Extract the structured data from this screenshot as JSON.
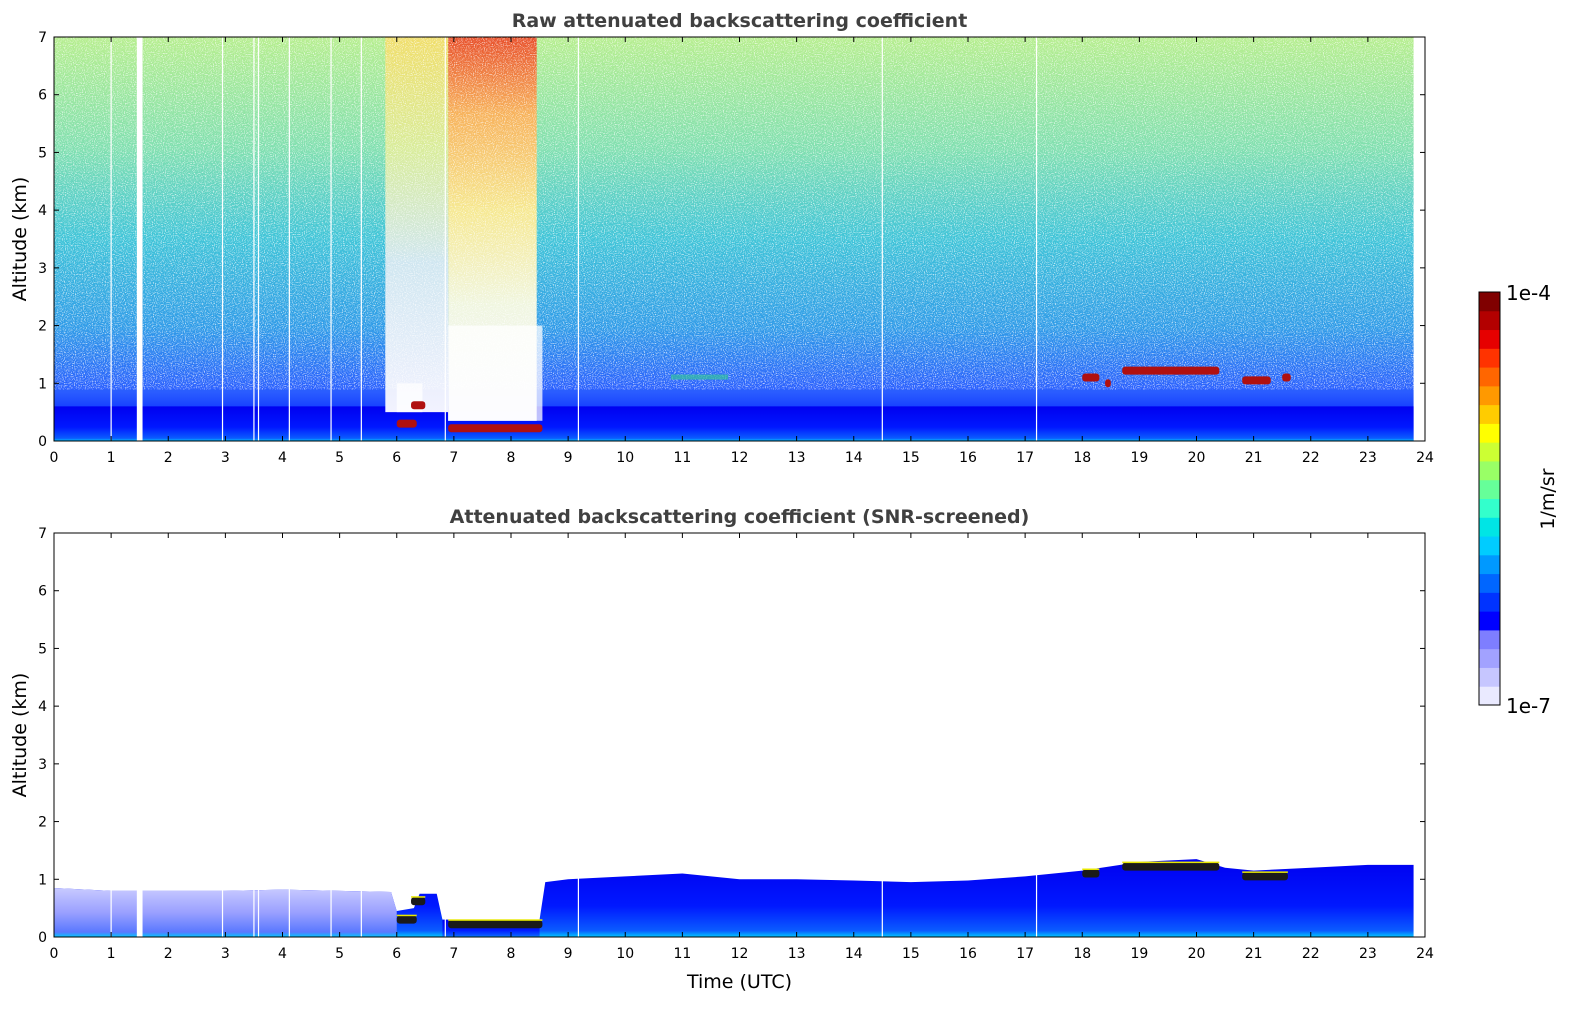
{
  "chart_data": [
    {
      "type": "heatmap",
      "title": "Raw attenuated backscattering coefficient",
      "xlabel": "",
      "ylabel": "Altitude (km)",
      "xlim": [
        0,
        24
      ],
      "ylim": [
        0,
        7
      ],
      "xticks": [
        "0",
        "1",
        "2",
        "3",
        "4",
        "5",
        "6",
        "7",
        "8",
        "9",
        "10",
        "11",
        "12",
        "13",
        "14",
        "15",
        "16",
        "17",
        "18",
        "19",
        "20",
        "21",
        "22",
        "23",
        "24"
      ],
      "yticks": [
        "0",
        "1",
        "2",
        "3",
        "4",
        "5",
        "6",
        "7"
      ],
      "data_end_time": 23.8,
      "gaps": [
        1.45,
        1.5,
        1.55
      ],
      "thin_gaps": [
        1.0,
        2.95,
        3.5,
        3.58,
        4.12,
        4.85,
        5.38,
        6.85,
        9.18,
        14.5,
        17.2
      ],
      "features": [
        {
          "kind": "cloud",
          "x": [
            6.0,
            6.35
          ],
          "altitude_km": 0.3
        },
        {
          "kind": "cloud",
          "x": [
            6.25,
            6.5
          ],
          "altitude_km": 0.62
        },
        {
          "kind": "cloud",
          "x": [
            6.9,
            8.55
          ],
          "altitude_km": 0.22
        },
        {
          "kind": "cloud",
          "x": [
            18.0,
            18.3
          ],
          "altitude_km": 1.1
        },
        {
          "kind": "cloud",
          "x": [
            18.4,
            18.5
          ],
          "altitude_km": 1.0
        },
        {
          "kind": "cloud",
          "x": [
            18.7,
            20.4
          ],
          "altitude_km": 1.22
        },
        {
          "kind": "cloud",
          "x": [
            20.8,
            21.3
          ],
          "altitude_km": 1.05
        },
        {
          "kind": "cloud",
          "x": [
            21.5,
            21.65
          ],
          "altitude_km": 1.1
        },
        {
          "kind": "aerosol",
          "x": [
            10.8,
            11.8
          ],
          "altitude_km": 1.1
        },
        {
          "kind": "clear-column",
          "x": [
            6.0,
            6.45
          ],
          "altitude_km": [
            0.5,
            1.0
          ]
        },
        {
          "kind": "clear-column",
          "x": [
            6.9,
            8.55
          ],
          "altitude_km": [
            0.35,
            2.0
          ]
        }
      ]
    },
    {
      "type": "heatmap",
      "title": "Attenuated backscattering coefficient (SNR-screened)",
      "xlabel": "Time (UTC)",
      "ylabel": "Altitude (km)",
      "xlim": [
        0,
        24
      ],
      "ylim": [
        0,
        7
      ],
      "xticks": [
        "0",
        "1",
        "2",
        "3",
        "4",
        "5",
        "6",
        "7",
        "8",
        "9",
        "10",
        "11",
        "12",
        "13",
        "14",
        "15",
        "16",
        "17",
        "18",
        "19",
        "20",
        "21",
        "22",
        "23",
        "24"
      ],
      "yticks": [
        "0",
        "1",
        "2",
        "3",
        "4",
        "5",
        "6",
        "7"
      ],
      "data_end_time": 23.8,
      "layer_top_km": [
        [
          0,
          0.85
        ],
        [
          1.0,
          0.8
        ],
        [
          2.0,
          0.8
        ],
        [
          3.0,
          0.8
        ],
        [
          4.0,
          0.82
        ],
        [
          5.0,
          0.8
        ],
        [
          5.9,
          0.78
        ],
        [
          6.0,
          0.45
        ],
        [
          6.3,
          0.5
        ],
        [
          6.4,
          0.75
        ],
        [
          6.7,
          0.75
        ],
        [
          6.8,
          0.3
        ],
        [
          8.5,
          0.3
        ],
        [
          8.6,
          0.95
        ],
        [
          9.0,
          1.0
        ],
        [
          10.0,
          1.05
        ],
        [
          11.0,
          1.1
        ],
        [
          12.0,
          1.0
        ],
        [
          13.0,
          1.0
        ],
        [
          14.0,
          0.98
        ],
        [
          15.0,
          0.95
        ],
        [
          16.0,
          0.98
        ],
        [
          17.0,
          1.05
        ],
        [
          18.0,
          1.15
        ],
        [
          19.0,
          1.3
        ],
        [
          20.0,
          1.35
        ],
        [
          20.5,
          1.2
        ],
        [
          21.0,
          1.15
        ],
        [
          22.0,
          1.2
        ],
        [
          23.0,
          1.25
        ],
        [
          23.8,
          1.25
        ]
      ],
      "features": [
        {
          "kind": "cloud",
          "x": [
            6.0,
            6.35
          ],
          "altitude_km": 0.3
        },
        {
          "kind": "cloud",
          "x": [
            6.25,
            6.5
          ],
          "altitude_km": 0.62
        },
        {
          "kind": "cloud",
          "x": [
            6.9,
            8.55
          ],
          "altitude_km": 0.22
        },
        {
          "kind": "cloud",
          "x": [
            18.0,
            18.3
          ],
          "altitude_km": 1.1
        },
        {
          "kind": "cloud",
          "x": [
            18.7,
            20.4
          ],
          "altitude_km": 1.22
        },
        {
          "kind": "cloud",
          "x": [
            20.8,
            21.6
          ],
          "altitude_km": 1.05
        }
      ]
    }
  ],
  "colorbar": {
    "max_label": "1e-4",
    "min_label": "1e-7",
    "unit_label": "1/m/sr",
    "colors": [
      "#eaeaff",
      "#c6c6ff",
      "#a2a2ff",
      "#7e7eff",
      "#0000ff",
      "#0033ff",
      "#0066ff",
      "#0099ff",
      "#00ccff",
      "#00e5e5",
      "#33ffcc",
      "#66ff99",
      "#99ff66",
      "#ccff33",
      "#ffff00",
      "#ffcc00",
      "#ff9900",
      "#ff6600",
      "#ff3300",
      "#e60000",
      "#b30000",
      "#800000"
    ]
  }
}
